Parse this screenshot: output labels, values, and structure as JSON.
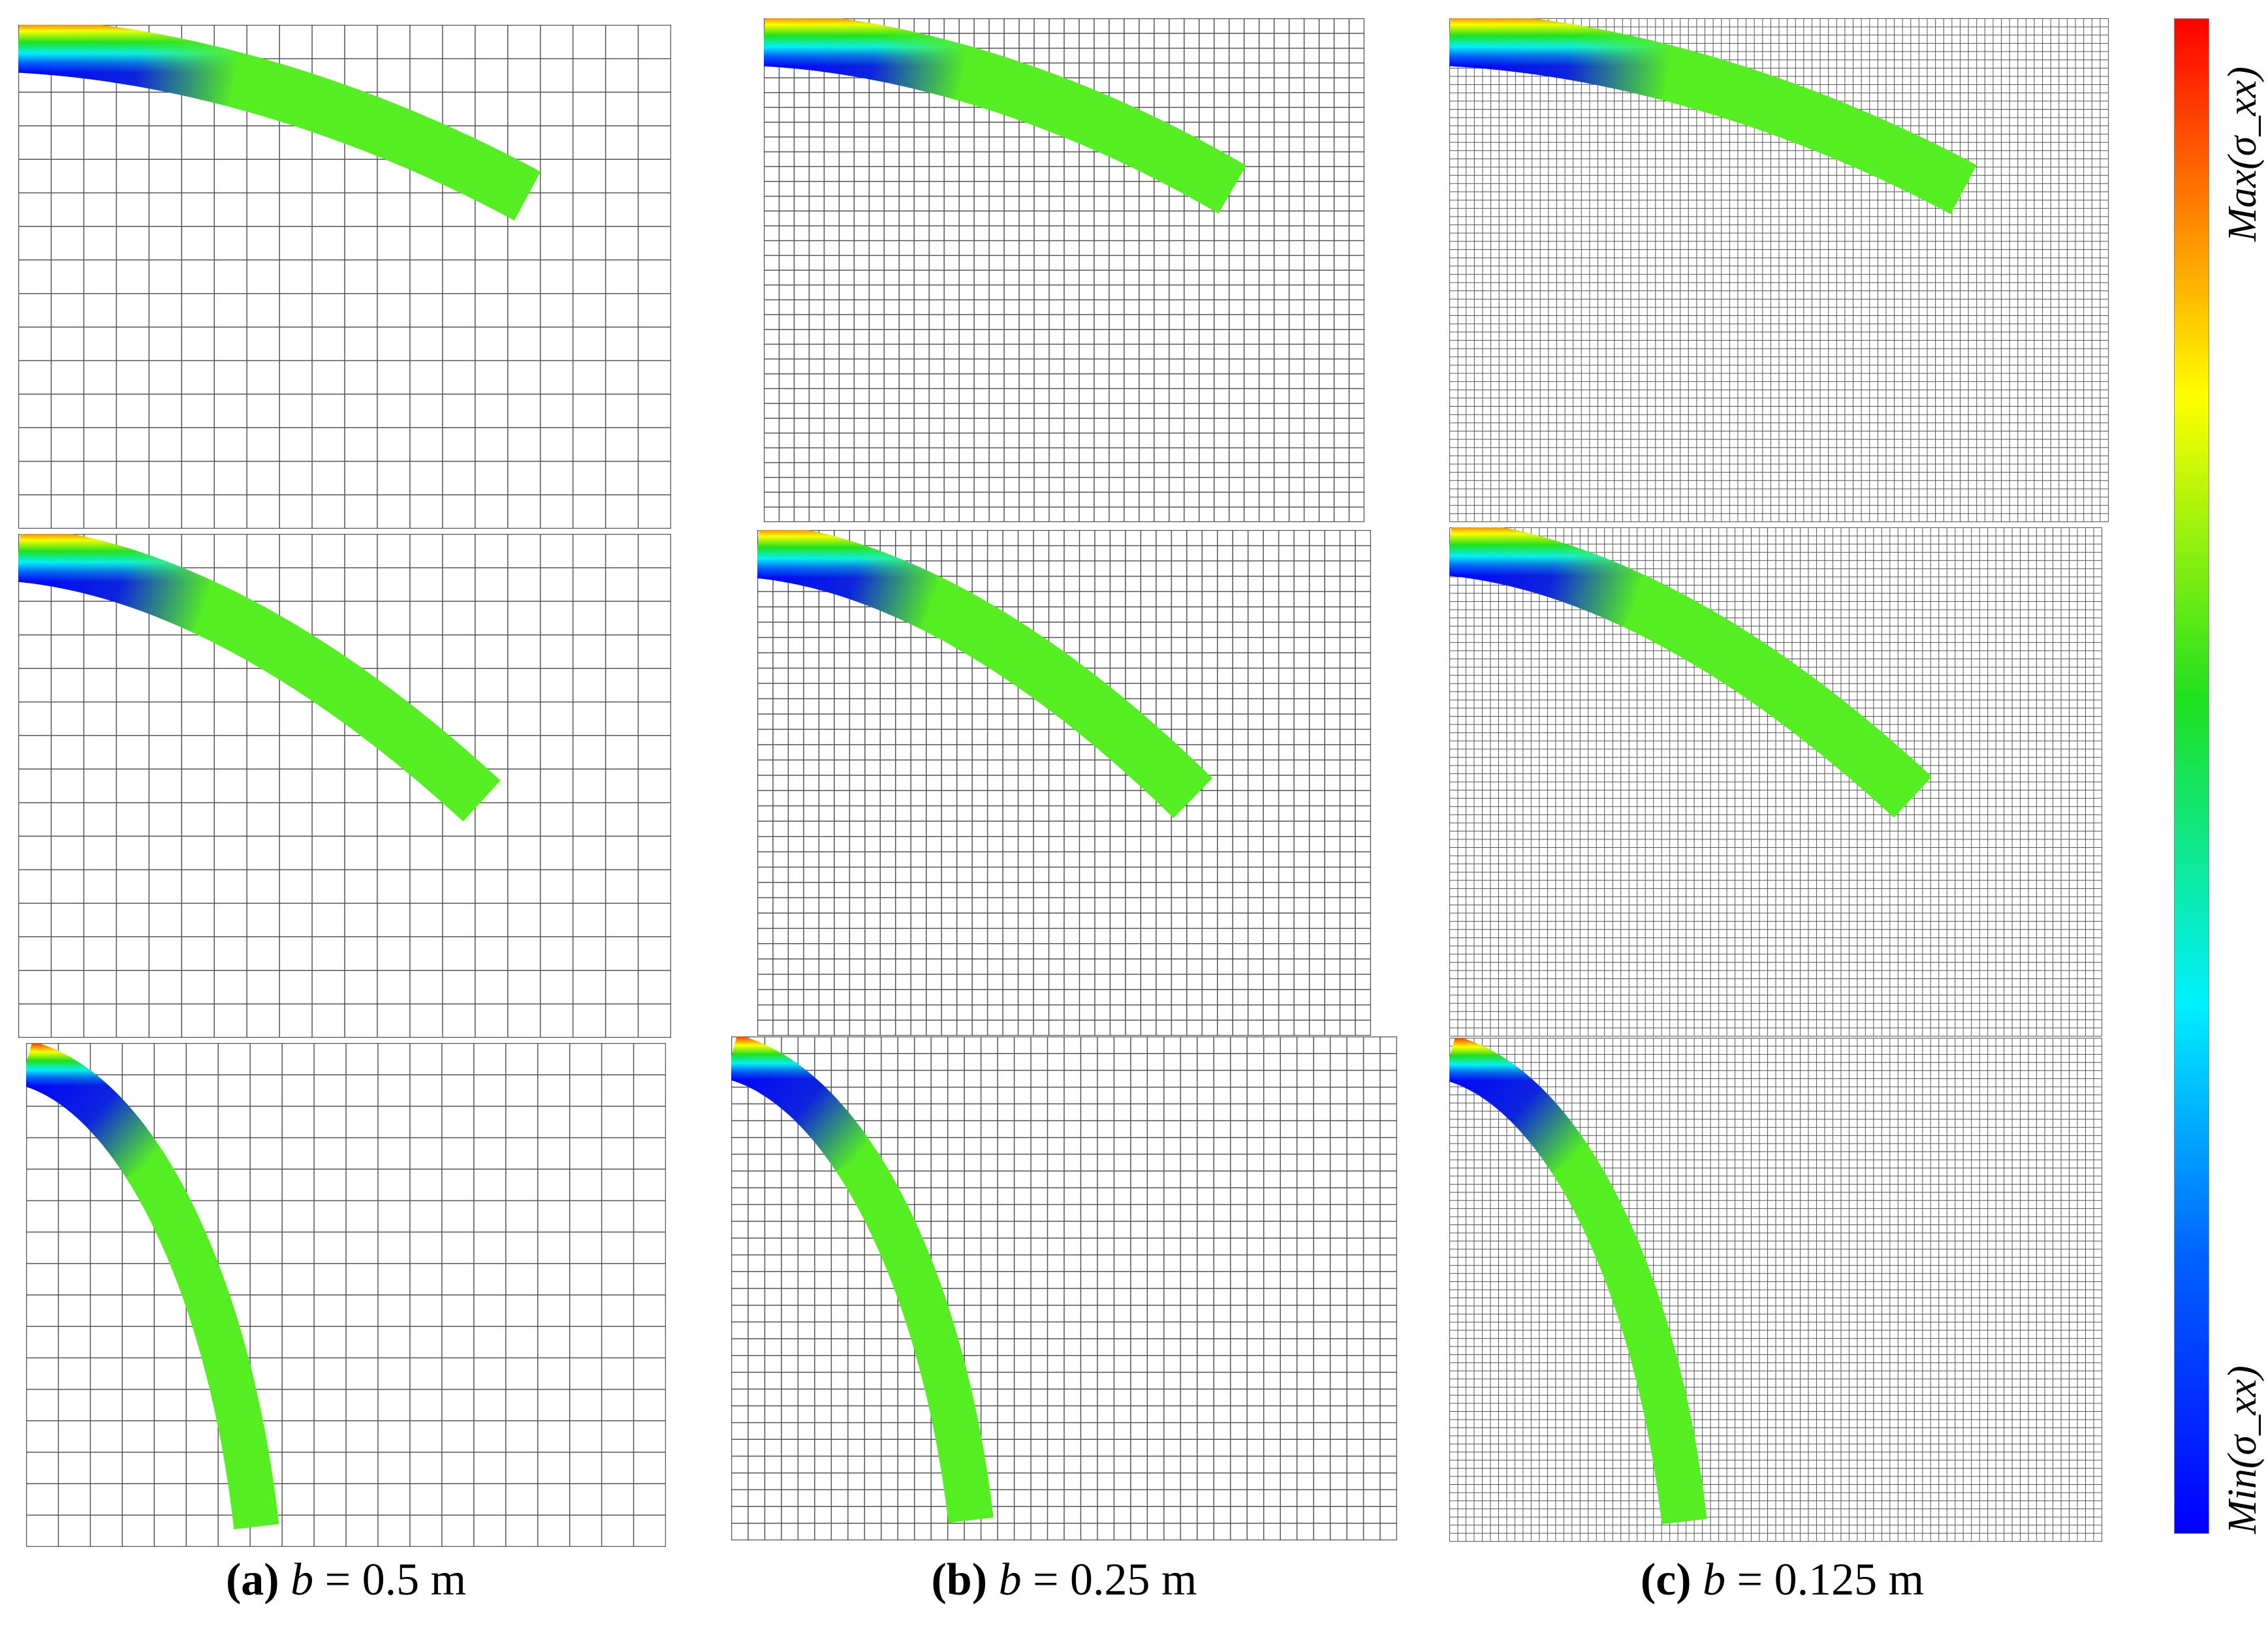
{
  "colormap": {
    "stops": [
      {
        "at": 0.0,
        "color": "#ff0000"
      },
      {
        "at": 0.25,
        "color": "#ffff00"
      },
      {
        "at": 0.45,
        "color": "#1fe01f"
      },
      {
        "at": 0.65,
        "color": "#00f0ff"
      },
      {
        "at": 0.82,
        "color": "#0060ff"
      },
      {
        "at": 1.0,
        "color": "#0000ff"
      }
    ],
    "beam_bulk_color": "#55ee22"
  },
  "colorbar": {
    "max_label": "Max(σ_xx)",
    "min_label": "Min(σ_xx)"
  },
  "columns": [
    {
      "label": "(a)",
      "symbol": "b",
      "equals": " = ",
      "value": "0.5 m",
      "grid_divisions": 20
    },
    {
      "label": "(b)",
      "symbol": "b",
      "equals": " = ",
      "value": "0.25 m",
      "grid_divisions": 40
    },
    {
      "label": "(c)",
      "symbol": "b",
      "equals": " = ",
      "value": "0.125 m",
      "grid_divisions": 80
    }
  ],
  "rows": [
    {
      "deflection": "small"
    },
    {
      "deflection": "medium"
    },
    {
      "deflection": "large"
    }
  ]
}
